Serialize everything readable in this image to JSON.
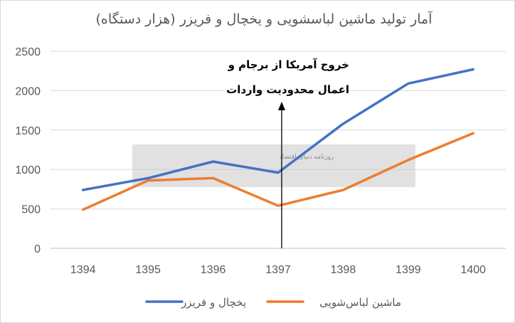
{
  "chart_data": {
    "type": "line",
    "title": "آمار تولید ماشین لباسشویی و یخچال و فریزر (هزار دستگاه)",
    "categories": [
      "1394",
      "1395",
      "1396",
      "1397",
      "1398",
      "1399",
      "1400"
    ],
    "ylim": [
      0,
      2500
    ],
    "yticks": [
      "0",
      "500",
      "1000",
      "1500",
      "2000",
      "2500"
    ],
    "grid": true,
    "legend_position": "bottom",
    "series": [
      {
        "name": "یخچال و فریزر",
        "color": "#4472c4",
        "values": [
          740,
          890,
          1100,
          960,
          1580,
          2090,
          2270
        ]
      },
      {
        "name": "ماشین لباس‌شویی",
        "color": "#ed7d31",
        "values": [
          490,
          860,
          890,
          540,
          740,
          1120,
          1460
        ]
      }
    ],
    "annotation": {
      "lines": [
        "خروج آمریکا از برجام و",
        "اعمال محدودیت واردات"
      ],
      "at_category": "1397"
    }
  },
  "watermark": {
    "text": "روزنامه دنیای اقتصاد"
  }
}
